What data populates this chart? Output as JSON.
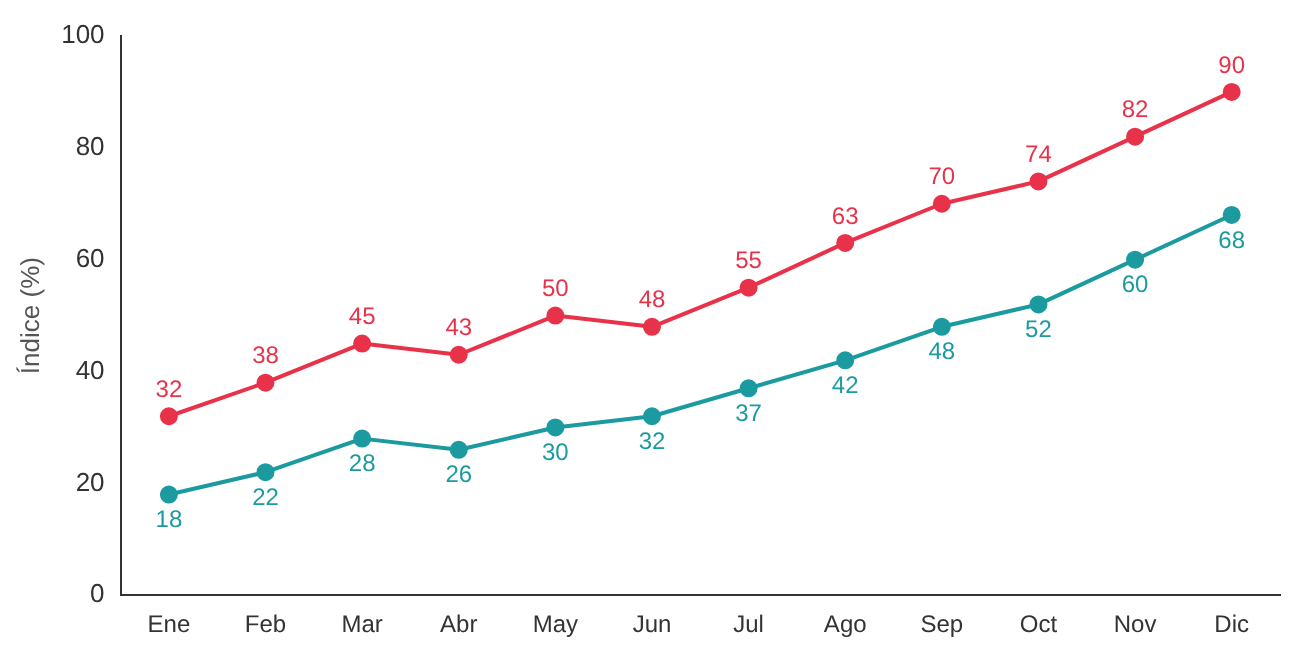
{
  "chart_data": {
    "type": "line",
    "ylabel": "Índice (%)",
    "categories": [
      "Ene",
      "Feb",
      "Mar",
      "Abr",
      "May",
      "Jun",
      "Jul",
      "Ago",
      "Sep",
      "Oct",
      "Nov",
      "Dic"
    ],
    "series": [
      {
        "color": "#e8324a",
        "values": [
          32,
          38,
          45,
          43,
          50,
          48,
          55,
          63,
          70,
          74,
          82,
          90
        ]
      },
      {
        "color": "#1b9aa0",
        "values": [
          18,
          22,
          28,
          26,
          30,
          32,
          37,
          42,
          48,
          52,
          60,
          68
        ]
      }
    ],
    "ylim": [
      0,
      100
    ],
    "yticks": [
      0,
      20,
      40,
      60,
      80,
      100
    ],
    "grid": false,
    "legend": false,
    "marker": "circle",
    "line_style": "solid",
    "data_labels": true
  }
}
